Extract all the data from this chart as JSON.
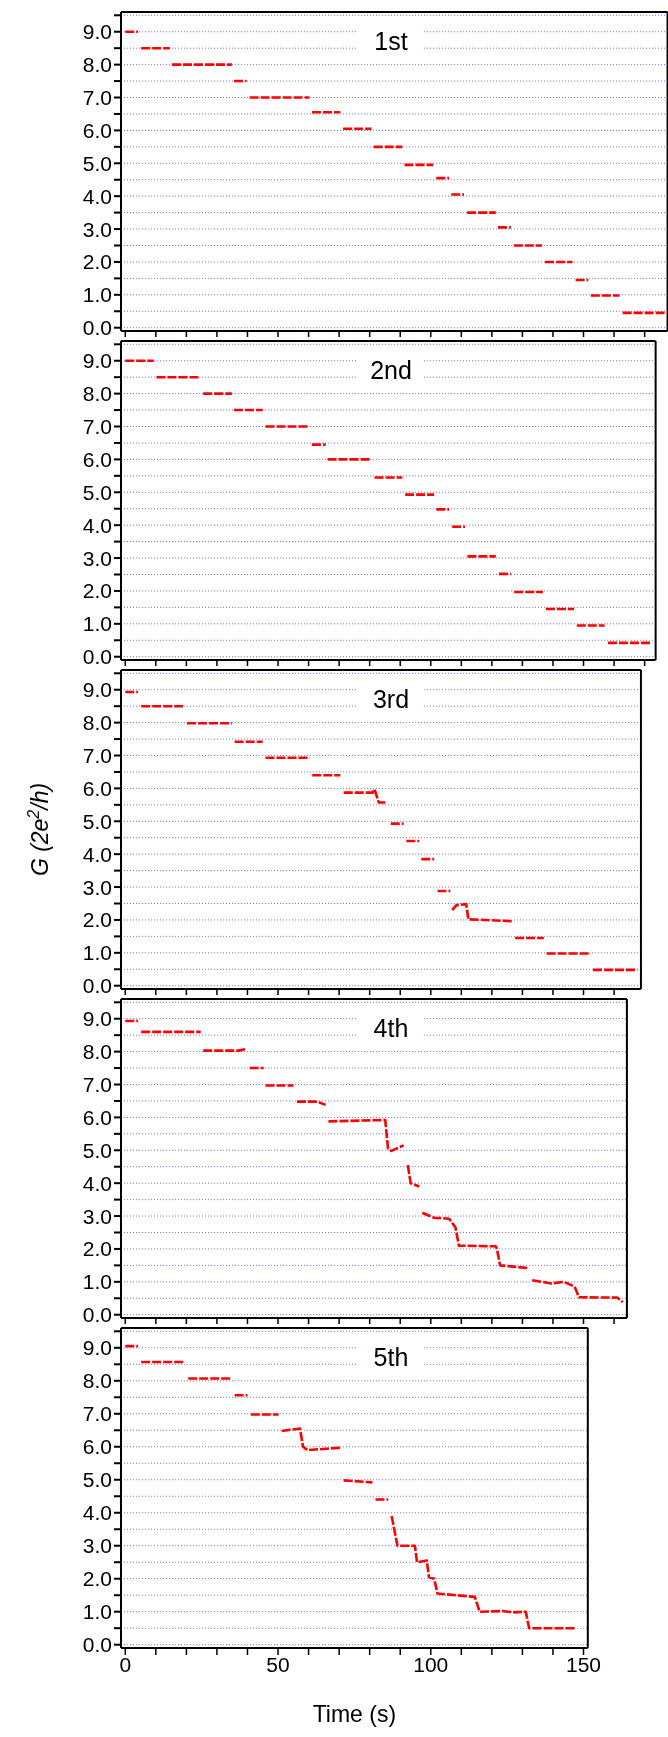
{
  "chart_data": [
    {
      "type": "line",
      "annotations": [
        "1st"
      ],
      "xlim": [
        -1.4,
        177.5
      ],
      "ylim": [
        -0.1,
        9.6
      ],
      "grid": "y",
      "tick_labels": "y",
      "line_style": "dashed",
      "marker": "none",
      "xticks": [
        0,
        {
          "value": 10,
          "label": null
        },
        {
          "value": 20,
          "label": null
        },
        {
          "value": 30,
          "label": null
        },
        {
          "value": 40,
          "label": null
        },
        50,
        {
          "value": 60,
          "label": null
        },
        {
          "value": 70,
          "label": null
        },
        {
          "value": 80,
          "label": null
        },
        {
          "value": 90,
          "label": null
        },
        100,
        {
          "value": 110,
          "label": null
        },
        {
          "value": 120,
          "label": null
        },
        {
          "value": 130,
          "label": null
        },
        {
          "value": 140,
          "label": null
        },
        150,
        {
          "value": 160,
          "label": null
        },
        {
          "value": 170,
          "label": null
        }
      ],
      "yticks": [
        {
          "value": 0,
          "label": "0.0"
        },
        {
          "value": 0.5,
          "label": null
        },
        {
          "value": 1,
          "label": "1.0"
        },
        {
          "value": 1.5,
          "label": null
        },
        {
          "value": 2,
          "label": "2.0"
        },
        {
          "value": 2.5,
          "label": null
        },
        {
          "value": 3,
          "label": "3.0"
        },
        {
          "value": 3.5,
          "label": null
        },
        {
          "value": 4,
          "label": "4.0"
        },
        {
          "value": 4.5,
          "label": null
        },
        {
          "value": 5,
          "label": "5.0"
        },
        {
          "value": 5.5,
          "label": null
        },
        {
          "value": 6,
          "label": "6.0"
        },
        {
          "value": 6.5,
          "label": null
        },
        {
          "value": 7,
          "label": "7.0"
        },
        {
          "value": 7.5,
          "label": null
        },
        {
          "value": 8,
          "label": "8.0"
        },
        {
          "value": 8.5,
          "label": null
        },
        {
          "value": 9,
          "label": "9.0"
        },
        {
          "value": 9.5,
          "label": null
        }
      ],
      "series": [
        {
          "color": "#ff0000",
          "x": [
            0,
            4.2,
            4.7,
            5.2,
            14.6,
            15,
            15.3,
            34.9,
            35.2,
            35.6,
            39.7,
            40.2,
            40.7,
            60.3,
            60.7,
            61.1,
            70.4,
            70.8,
            71.3,
            80.6,
            81,
            81.3,
            90.7,
            91,
            91.4,
            100.8,
            101.3,
            101.8,
            106,
            106.3,
            106.7,
            110.9,
            111.4,
            111.9,
            121.3,
            121.6,
            122,
            126.2,
            126.7,
            127.2,
            136.4,
            136.9,
            137.4,
            146.4,
            146.9,
            147.4,
            151.6,
            152,
            152.4,
            161.8,
            162.3,
            162.8,
            177
          ],
          "values": [
            9.0,
            9.0,
            null,
            8.5,
            8.5,
            null,
            8.0,
            8.0,
            null,
            7.5,
            7.5,
            null,
            7.0,
            7.0,
            null,
            6.55,
            6.55,
            null,
            6.05,
            6.05,
            null,
            5.5,
            5.5,
            null,
            4.95,
            4.95,
            null,
            4.55,
            4.55,
            null,
            4.05,
            4.05,
            null,
            3.5,
            3.5,
            null,
            3.05,
            3.05,
            null,
            2.5,
            2.5,
            null,
            2.0,
            2.0,
            null,
            1.45,
            1.45,
            null,
            0.98,
            0.98,
            null,
            0.45,
            0.45
          ]
        }
      ]
    },
    {
      "type": "line",
      "annotations": [
        "2nd"
      ],
      "xlim": [
        -1.4,
        173.6
      ],
      "ylim": [
        -0.1,
        9.6
      ],
      "grid": "y",
      "tick_labels": "y",
      "line_style": "dashed",
      "marker": "none",
      "xticks": [
        0,
        {
          "value": 10,
          "label": null
        },
        {
          "value": 20,
          "label": null
        },
        {
          "value": 30,
          "label": null
        },
        {
          "value": 40,
          "label": null
        },
        50,
        {
          "value": 60,
          "label": null
        },
        {
          "value": 70,
          "label": null
        },
        {
          "value": 80,
          "label": null
        },
        {
          "value": 90,
          "label": null
        },
        100,
        {
          "value": 110,
          "label": null
        },
        {
          "value": 120,
          "label": null
        },
        {
          "value": 130,
          "label": null
        },
        {
          "value": 140,
          "label": null
        },
        150,
        {
          "value": 160,
          "label": null
        },
        {
          "value": 170,
          "label": null
        }
      ],
      "yticks": [
        {
          "value": 0,
          "label": "0.0"
        },
        {
          "value": 0.5,
          "label": null
        },
        {
          "value": 1,
          "label": "1.0"
        },
        {
          "value": 1.5,
          "label": null
        },
        {
          "value": 2,
          "label": "2.0"
        },
        {
          "value": 2.5,
          "label": null
        },
        {
          "value": 3,
          "label": "3.0"
        },
        {
          "value": 3.5,
          "label": null
        },
        {
          "value": 4,
          "label": "4.0"
        },
        {
          "value": 4.5,
          "label": null
        },
        {
          "value": 5,
          "label": "5.0"
        },
        {
          "value": 5.5,
          "label": null
        },
        {
          "value": 6,
          "label": "6.0"
        },
        {
          "value": 6.5,
          "label": null
        },
        {
          "value": 7,
          "label": "7.0"
        },
        {
          "value": 7.5,
          "label": null
        },
        {
          "value": 8,
          "label": "8.0"
        },
        {
          "value": 8.5,
          "label": null
        },
        {
          "value": 9,
          "label": "9.0"
        },
        {
          "value": 9.5,
          "label": null
        }
      ],
      "series": [
        {
          "color": "#ff0000",
          "x": [
            0,
            9.3,
            9.7,
            10.2,
            24.4,
            25,
            25.5,
            34.9,
            35.2,
            35.6,
            45,
            45.5,
            45.9,
            60.3,
            60.7,
            61.1,
            65.6,
            65.9,
            66.2,
            80.6,
            81.1,
            81.6,
            90.7,
            91.1,
            91.6,
            101.1,
            101.5,
            101.8,
            106,
            106.5,
            107,
            111.2,
            111.6,
            112,
            121.3,
            121.8,
            122.3,
            126.2,
            126.7,
            127.3,
            136.7,
            137.2,
            137.7,
            146.9,
            147.3,
            147.8,
            156.9,
            157.5,
            158,
            172.2
          ],
          "values": [
            9.0,
            9.0,
            null,
            8.5,
            8.5,
            null,
            8.0,
            8.0,
            null,
            7.5,
            7.5,
            null,
            7.0,
            7.0,
            null,
            6.45,
            6.45,
            null,
            6.0,
            6.0,
            null,
            5.45,
            5.45,
            null,
            4.93,
            4.93,
            null,
            4.48,
            4.48,
            null,
            3.95,
            3.95,
            null,
            3.05,
            3.05,
            null,
            2.52,
            2.52,
            null,
            1.97,
            1.97,
            null,
            1.45,
            1.45,
            null,
            0.95,
            0.95,
            null,
            0.42,
            0.42
          ]
        }
      ]
    },
    {
      "type": "line",
      "annotations": [
        "3rd"
      ],
      "ylabel": "G (2e$^{2}$/h)",
      "xlim": [
        -1.4,
        168.8
      ],
      "ylim": [
        -0.1,
        9.6
      ],
      "grid": "y",
      "tick_labels": "y",
      "line_style": "dashed",
      "marker": "none",
      "xticks": [
        0,
        {
          "value": 10,
          "label": null
        },
        {
          "value": 20,
          "label": null
        },
        {
          "value": 30,
          "label": null
        },
        {
          "value": 40,
          "label": null
        },
        50,
        {
          "value": 60,
          "label": null
        },
        {
          "value": 70,
          "label": null
        },
        {
          "value": 80,
          "label": null
        },
        {
          "value": 90,
          "label": null
        },
        100,
        {
          "value": 110,
          "label": null
        },
        {
          "value": 120,
          "label": null
        },
        {
          "value": 130,
          "label": null
        },
        {
          "value": 140,
          "label": null
        },
        150,
        {
          "value": 160,
          "label": null
        }
      ],
      "yticks": [
        {
          "value": 0,
          "label": "0.0"
        },
        {
          "value": 0.5,
          "label": null
        },
        {
          "value": 1,
          "label": "1.0"
        },
        {
          "value": 1.5,
          "label": null
        },
        {
          "value": 2,
          "label": "2.0"
        },
        {
          "value": 2.5,
          "label": null
        },
        {
          "value": 3,
          "label": "3.0"
        },
        {
          "value": 3.5,
          "label": null
        },
        {
          "value": 4,
          "label": "4.0"
        },
        {
          "value": 4.5,
          "label": null
        },
        {
          "value": 5,
          "label": "5.0"
        },
        {
          "value": 5.5,
          "label": null
        },
        {
          "value": 6,
          "label": "6.0"
        },
        {
          "value": 6.5,
          "label": null
        },
        {
          "value": 7,
          "label": "7.0"
        },
        {
          "value": 7.5,
          "label": null
        },
        {
          "value": 8,
          "label": "8.0"
        },
        {
          "value": 8.5,
          "label": null
        },
        {
          "value": 9,
          "label": "9.0"
        },
        {
          "value": 9.5,
          "label": null
        }
      ],
      "series": [
        {
          "color": "#ff0000",
          "x": [
            0,
            4.2,
            4.7,
            5.2,
            19.5,
            19.8,
            20.2,
            34.9,
            35.3,
            35.8,
            45,
            45.5,
            45.9,
            60.4,
            60.8,
            61.2,
            70.4,
            71,
            71.5,
            80.9,
            81.6,
            83,
            85.8,
            86.4,
            86.9,
            91.1,
            91.5,
            92,
            96.2,
            96.5,
            96.9,
            101.1,
            101.6,
            102.2,
            106.4,
            106.7,
            107,
            108.4,
            111.6,
            112.3,
            126.9,
            127.2,
            127.6,
            137,
            137.4,
            137.9,
            152.3,
            152.7,
            153.1,
            167.6
          ],
          "values": [
            8.93,
            8.93,
            null,
            8.5,
            8.5,
            null,
            7.98,
            7.98,
            null,
            7.42,
            7.42,
            null,
            6.93,
            6.93,
            null,
            6.4,
            6.4,
            null,
            5.87,
            5.87,
            5.97,
            5.57,
            5.57,
            null,
            4.93,
            4.93,
            null,
            4.4,
            4.4,
            null,
            3.85,
            3.85,
            null,
            2.88,
            2.88,
            null,
            2.3,
            2.45,
            2.48,
            2.02,
            1.96,
            null,
            1.45,
            1.45,
            null,
            0.98,
            0.98,
            null,
            0.48,
            0.48
          ]
        }
      ]
    },
    {
      "type": "line",
      "annotations": [
        "4th"
      ],
      "xlim": [
        -1.4,
        164.2
      ],
      "ylim": [
        -0.1,
        9.6
      ],
      "grid": "y",
      "tick_labels": "y",
      "line_style": "dashed",
      "marker": "none",
      "xticks": [
        0,
        {
          "value": 10,
          "label": null
        },
        {
          "value": 20,
          "label": null
        },
        {
          "value": 30,
          "label": null
        },
        {
          "value": 40,
          "label": null
        },
        50,
        {
          "value": 60,
          "label": null
        },
        {
          "value": 70,
          "label": null
        },
        {
          "value": 80,
          "label": null
        },
        {
          "value": 90,
          "label": null
        },
        100,
        {
          "value": 110,
          "label": null
        },
        {
          "value": 120,
          "label": null
        },
        {
          "value": 130,
          "label": null
        },
        {
          "value": 140,
          "label": null
        },
        150,
        {
          "value": 160,
          "label": null
        }
      ],
      "yticks": [
        {
          "value": 0,
          "label": "0.0"
        },
        {
          "value": 0.5,
          "label": null
        },
        {
          "value": 1,
          "label": "1.0"
        },
        {
          "value": 1.5,
          "label": null
        },
        {
          "value": 2,
          "label": "2.0"
        },
        {
          "value": 2.5,
          "label": null
        },
        {
          "value": 3,
          "label": "3.0"
        },
        {
          "value": 3.5,
          "label": null
        },
        {
          "value": 4,
          "label": "4.0"
        },
        {
          "value": 4.5,
          "label": null
        },
        {
          "value": 5,
          "label": "5.0"
        },
        {
          "value": 5.5,
          "label": null
        },
        {
          "value": 6,
          "label": "6.0"
        },
        {
          "value": 6.5,
          "label": null
        },
        {
          "value": 7,
          "label": "7.0"
        },
        {
          "value": 7.5,
          "label": null
        },
        {
          "value": 8,
          "label": "8.0"
        },
        {
          "value": 8.5,
          "label": null
        },
        {
          "value": 9,
          "label": "9.0"
        },
        {
          "value": 9.5,
          "label": null
        }
      ],
      "series": [
        {
          "color": "#ff0000",
          "x": [
            0,
            4.2,
            4.7,
            5.2,
            24.7,
            25.1,
            25.5,
            37,
            39.7,
            40.2,
            40.7,
            45.3,
            45.6,
            45.9,
            55.1,
            55.6,
            56.2,
            62.8,
            65.6,
            66,
            66.5,
            85.1,
            86,
            87.1,
            91.1,
            91.8,
            92.5,
            93.4,
            96.2,
            96.7,
            97.2,
            101.1,
            106,
            108.1,
            109.2,
            121.3,
            121.7,
            122.7,
            131.8,
            132.5,
            133.2,
            139.5,
            143.7,
            147.1,
            148.5,
            161.1,
            162.8
          ],
          "values": [
            8.93,
            8.93,
            null,
            8.6,
            8.6,
            null,
            8.03,
            8.03,
            8.08,
            null,
            7.5,
            7.5,
            null,
            6.97,
            6.97,
            null,
            6.48,
            6.48,
            6.38,
            null,
            5.88,
            5.92,
            5.05,
            4.98,
            5.15,
            null,
            4.55,
            4.0,
            3.9,
            null,
            3.1,
            2.95,
            2.92,
            2.65,
            2.1,
            2.08,
            1.97,
            1.5,
            1.42,
            null,
            1.05,
            0.95,
            1.0,
            0.85,
            0.53,
            0.52,
            0.38
          ]
        }
      ]
    },
    {
      "type": "line",
      "annotations": [
        "5th"
      ],
      "xlabel": "Time (s)",
      "xlim": [
        -1.4,
        151.4
      ],
      "ylim": [
        -0.1,
        9.6
      ],
      "grid": "y",
      "line_style": "dashed",
      "marker": "none",
      "xticks": [
        0,
        {
          "value": 10,
          "label": null
        },
        {
          "value": 20,
          "label": null
        },
        {
          "value": 30,
          "label": null
        },
        {
          "value": 40,
          "label": null
        },
        50,
        {
          "value": 60,
          "label": null
        },
        {
          "value": 70,
          "label": null
        },
        {
          "value": 80,
          "label": null
        },
        {
          "value": 90,
          "label": null
        },
        100,
        {
          "value": 110,
          "label": null
        },
        {
          "value": 120,
          "label": null
        },
        {
          "value": 130,
          "label": null
        },
        {
          "value": 140,
          "label": null
        },
        150
      ],
      "yticks": [
        {
          "value": 0,
          "label": "0.0"
        },
        {
          "value": 0.5,
          "label": null
        },
        {
          "value": 1,
          "label": "1.0"
        },
        {
          "value": 1.5,
          "label": null
        },
        {
          "value": 2,
          "label": "2.0"
        },
        {
          "value": 2.5,
          "label": null
        },
        {
          "value": 3,
          "label": "3.0"
        },
        {
          "value": 3.5,
          "label": null
        },
        {
          "value": 4,
          "label": "4.0"
        },
        {
          "value": 4.5,
          "label": null
        },
        {
          "value": 5,
          "label": "5.0"
        },
        {
          "value": 5.5,
          "label": null
        },
        {
          "value": 6,
          "label": "6.0"
        },
        {
          "value": 6.5,
          "label": null
        },
        {
          "value": 7,
          "label": "7.0"
        },
        {
          "value": 7.5,
          "label": null
        },
        {
          "value": 8,
          "label": "8.0"
        },
        {
          "value": 8.5,
          "label": null
        },
        {
          "value": 9,
          "label": "9.0"
        },
        {
          "value": 9.5,
          "label": null
        }
      ],
      "series": [
        {
          "color": "#ff0000",
          "x": [
            0,
            4.2,
            4.7,
            5.2,
            19.5,
            20,
            20.6,
            34.9,
            35.3,
            35.8,
            40,
            40.5,
            41.1,
            50.2,
            50.7,
            51.2,
            57.2,
            58.2,
            59.6,
            70.4,
            71,
            71.5,
            80.9,
            81.4,
            81.9,
            86.1,
            86.6,
            87.2,
            89.1,
            94.8,
            95.5,
            98.7,
            99.4,
            101.1,
            102.2,
            114.4,
            116,
            123.4,
            126.9,
            131.1,
            132.2,
            147.1
          ],
          "values": [
            9.05,
            9.05,
            null,
            8.57,
            8.57,
            null,
            8.07,
            8.07,
            null,
            7.56,
            7.56,
            null,
            6.98,
            6.98,
            null,
            6.48,
            6.55,
            6.0,
            5.9,
            5.97,
            null,
            4.98,
            4.92,
            null,
            4.4,
            4.4,
            null,
            3.9,
            3.0,
            3.0,
            2.5,
            2.55,
            2.05,
            2.0,
            1.55,
            1.45,
            1.0,
            1.02,
            0.98,
            1.0,
            0.5,
            0.5
          ]
        }
      ]
    }
  ]
}
